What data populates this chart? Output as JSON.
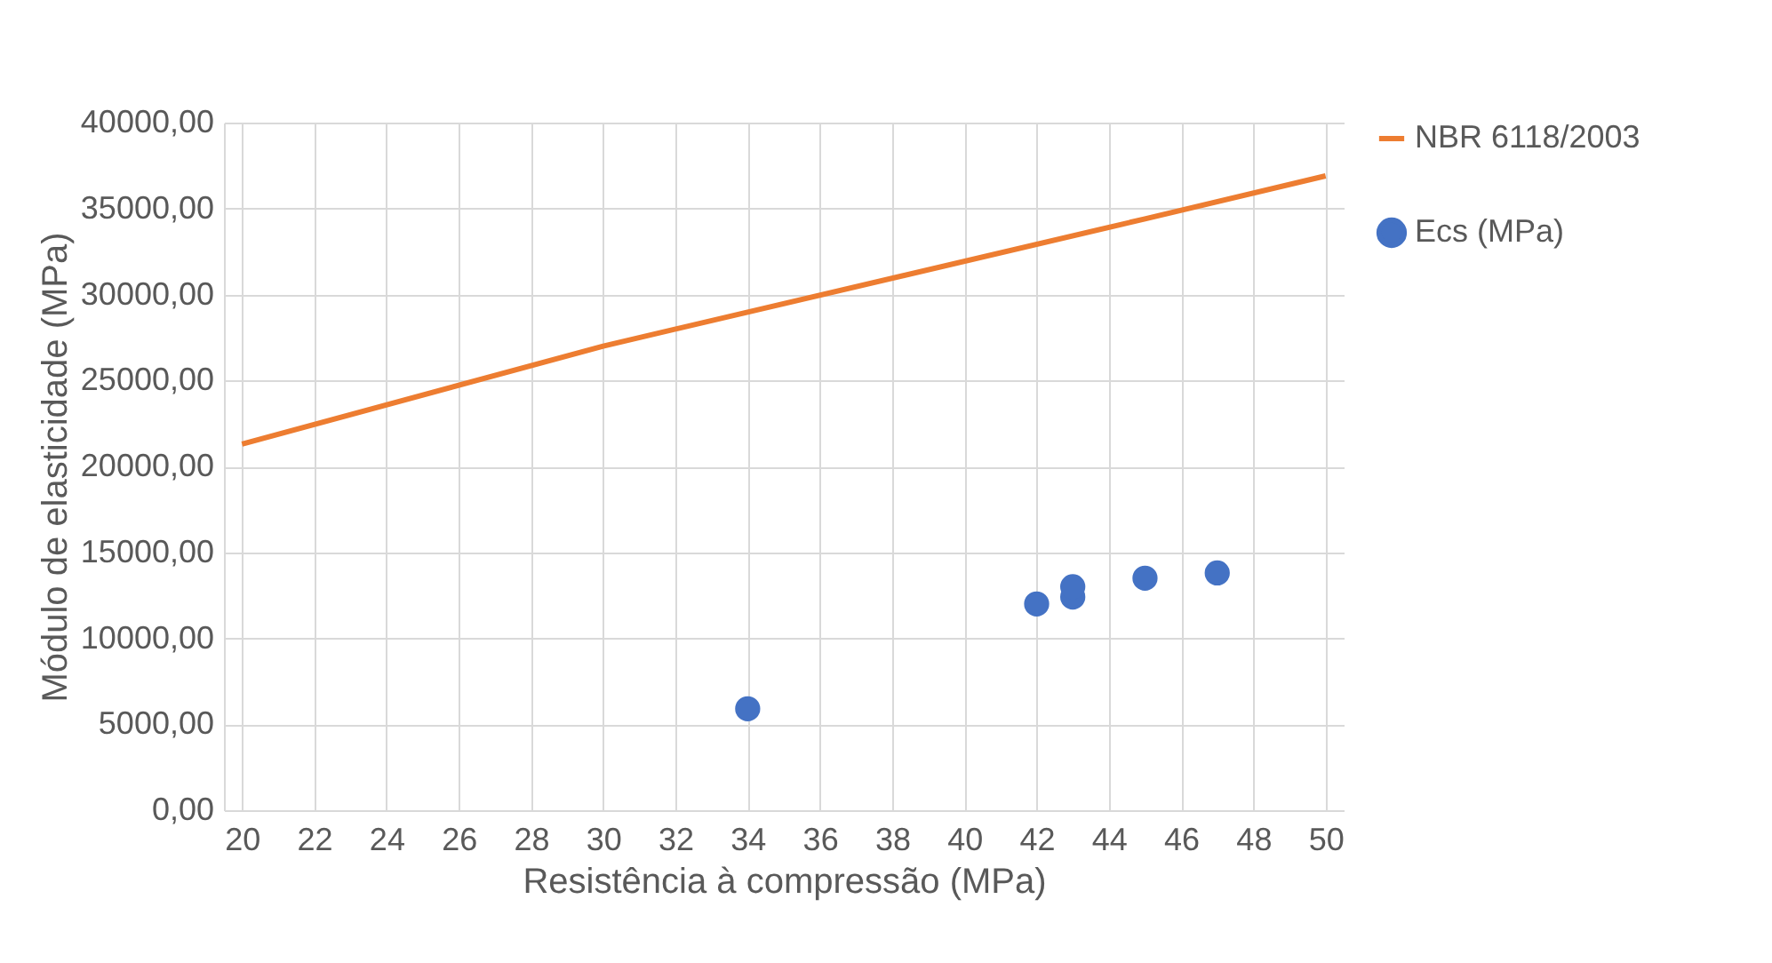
{
  "chart_data": {
    "type": "scatter",
    "xlabel": "Resistência à compressão (MPa)",
    "ylabel": "Módulo de elasticidade (MPa)",
    "xlim": [
      19.5,
      50.5
    ],
    "xticks": [
      20,
      22,
      24,
      26,
      28,
      30,
      32,
      34,
      36,
      38,
      40,
      42,
      44,
      46,
      48,
      50
    ],
    "ylim": [
      0,
      40000
    ],
    "yticks": [
      {
        "value": 0,
        "label": "0,00"
      },
      {
        "value": 5000,
        "label": "5000,00"
      },
      {
        "value": 10000,
        "label": "10000,00"
      },
      {
        "value": 15000,
        "label": "15000,00"
      },
      {
        "value": 20000,
        "label": "20000,00"
      },
      {
        "value": 25000,
        "label": "25000,00"
      },
      {
        "value": 30000,
        "label": "30000,00"
      },
      {
        "value": 35000,
        "label": "35000,00"
      },
      {
        "value": 40000,
        "label": "40000,00"
      }
    ],
    "grid": true,
    "legend": "right",
    "series": [
      {
        "name": "NBR 6118/2003",
        "type": "line",
        "color": "#ed7d31",
        "x": [
          20,
          30,
          45,
          50
        ],
        "values": [
          21300,
          27000,
          34400,
          36900
        ]
      },
      {
        "name": "Ecs (MPa)",
        "marker": "circle",
        "color": "#4472c4",
        "x": [
          34,
          42,
          43,
          43,
          45,
          47
        ],
        "values": [
          5900,
          12000,
          12400,
          13000,
          13500,
          13800
        ]
      }
    ]
  }
}
